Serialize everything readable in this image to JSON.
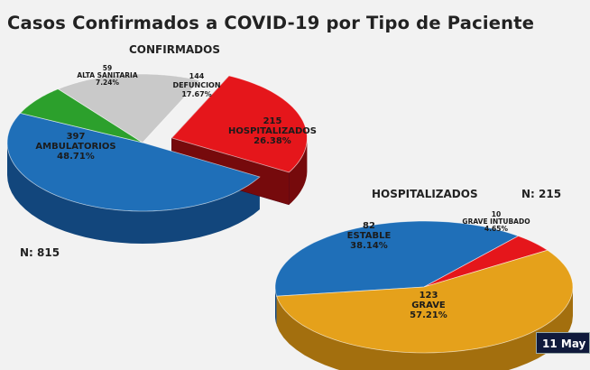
{
  "chart_data": [
    {
      "type": "pie",
      "title": "Casos Confirmados a COVID-19 por Tipo de Paciente",
      "subtitle": "CONFIRMADOS",
      "n_label": "N: 815",
      "slices": [
        {
          "label": "AMBULATORIOS",
          "value": 397,
          "value_label": "397",
          "percent": "48.71%",
          "color": "#1f6fb8",
          "side": "#12467c"
        },
        {
          "label": "ALTA SANITARIA",
          "value": 59,
          "value_label": "59",
          "percent": "7.24%",
          "color": "#2ca02c",
          "side": "#1a6a1a"
        },
        {
          "label": "DEFUNCION",
          "value": 144,
          "value_label": "144",
          "percent": "17.67%",
          "color": "#c9c9c9",
          "side": "#8a8a8a"
        },
        {
          "label": "HOSPITALIZADOS",
          "value": 215,
          "value_label": "215",
          "percent": "26.38%",
          "color": "#e5161b",
          "side": "#760a0c",
          "exploded": true
        }
      ]
    },
    {
      "type": "pie",
      "subtitle": "HOSPITALIZADOS",
      "n_label": "N: 215",
      "slices": [
        {
          "label": "ESTABLE",
          "value": 82,
          "value_label": "82",
          "percent": "38.14%",
          "color": "#1f6fb8",
          "side": "#12467c"
        },
        {
          "label": "GRAVE INTUBADO",
          "value": 10,
          "value_label": "10",
          "percent": "4.65%",
          "color": "#e5161b",
          "side": "#760a0c"
        },
        {
          "label": "GRAVE",
          "value": 123,
          "value_label": "123",
          "percent": "57.21%",
          "color": "#e5a11b",
          "side": "#a36f0e"
        }
      ]
    }
  ],
  "date_badge": "11 May"
}
